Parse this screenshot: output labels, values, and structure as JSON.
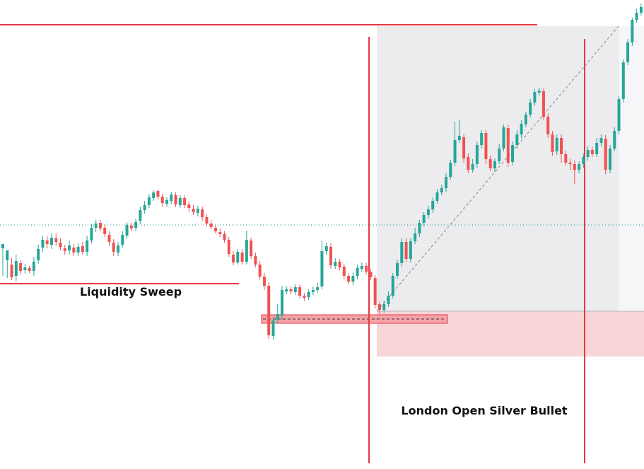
{
  "chart_data": {
    "type": "candlestick",
    "colors": {
      "up": "#26a69a",
      "down": "#ef5350",
      "level_line": "#e53946",
      "dotted_line": "#1a9c7c",
      "target_zone": "#ecebee",
      "stop_zone": "#f8d6d8",
      "fvg": "#f5a3a8"
    },
    "annotations": {
      "liquidity_sweep": "Liquidity Sweep",
      "silver_bullet": "London Open Silver Bullet"
    },
    "candles": [
      [
        351,
        345,
        365,
        390
      ],
      [
        368,
        354,
        375,
        393
      ],
      [
        374,
        392,
        365,
        396
      ],
      [
        390,
        369,
        398,
        360
      ],
      [
        372,
        383,
        368,
        388
      ],
      [
        382,
        378,
        387,
        373
      ],
      [
        379,
        383,
        376,
        386
      ],
      [
        383,
        370,
        390,
        363
      ],
      [
        368,
        352,
        373,
        346
      ],
      [
        350,
        339,
        357,
        333
      ],
      [
        340,
        345,
        334,
        351
      ],
      [
        346,
        336,
        352,
        330
      ],
      [
        337,
        342,
        330,
        348
      ],
      [
        343,
        349,
        337,
        354
      ],
      [
        351,
        355,
        346,
        360
      ],
      [
        354,
        347,
        360,
        340
      ],
      [
        350,
        357,
        345,
        362
      ],
      [
        357,
        349,
        362,
        344
      ],
      [
        348,
        356,
        342,
        360
      ],
      [
        356,
        340,
        362,
        333
      ],
      [
        340,
        322,
        344,
        317
      ],
      [
        322,
        316,
        328,
        311
      ],
      [
        315,
        323,
        311,
        327
      ],
      [
        322,
        331,
        317,
        335
      ],
      [
        332,
        342,
        327,
        348
      ],
      [
        343,
        356,
        338,
        362
      ],
      [
        357,
        347,
        362,
        342
      ],
      [
        346,
        332,
        350,
        327
      ],
      [
        333,
        318,
        338,
        314
      ],
      [
        319,
        323,
        315,
        327
      ],
      [
        322,
        314,
        327,
        309
      ],
      [
        312,
        297,
        317,
        292
      ],
      [
        297,
        290,
        302,
        284
      ],
      [
        290,
        279,
        294,
        274
      ],
      [
        280,
        272,
        284,
        269
      ],
      [
        270,
        278,
        268,
        282
      ],
      [
        278,
        287,
        274,
        292
      ],
      [
        288,
        283,
        292,
        279
      ],
      [
        284,
        275,
        289,
        271
      ],
      [
        276,
        289,
        272,
        293
      ],
      [
        290,
        280,
        294,
        276
      ],
      [
        280,
        290,
        276,
        294
      ],
      [
        289,
        294,
        285,
        300
      ],
      [
        295,
        300,
        290,
        304
      ],
      [
        301,
        295,
        306,
        291
      ],
      [
        296,
        307,
        292,
        312
      ],
      [
        307,
        316,
        303,
        320
      ],
      [
        316,
        321,
        311,
        324
      ],
      [
        322,
        327,
        318,
        330
      ],
      [
        328,
        331,
        323,
        335
      ],
      [
        331,
        339,
        327,
        343
      ],
      [
        339,
        359,
        335,
        363
      ],
      [
        360,
        371,
        355,
        375
      ],
      [
        371,
        356,
        374,
        352
      ],
      [
        357,
        370,
        352,
        374
      ],
      [
        370,
        339,
        374,
        326
      ],
      [
        340,
        362,
        336,
        366
      ],
      [
        362,
        374,
        357,
        378
      ],
      [
        374,
        391,
        369,
        395
      ],
      [
        391,
        404,
        386,
        410
      ],
      [
        404,
        474,
        399,
        479
      ],
      [
        475,
        453,
        480,
        448
      ],
      [
        452,
        444,
        457,
        430
      ],
      [
        446,
        410,
        452,
        404
      ],
      [
        412,
        409,
        416,
        405
      ],
      [
        409,
        412,
        405,
        416
      ],
      [
        413,
        406,
        417,
        402
      ],
      [
        406,
        418,
        402,
        422
      ],
      [
        418,
        421,
        414,
        425
      ],
      [
        420,
        413,
        424,
        409
      ],
      [
        413,
        410,
        417,
        405
      ],
      [
        410,
        406,
        414,
        400
      ],
      [
        405,
        355,
        409,
        340
      ],
      [
        355,
        348,
        360,
        343
      ],
      [
        349,
        375,
        344,
        380
      ],
      [
        376,
        370,
        380,
        365
      ],
      [
        370,
        378,
        366,
        382
      ],
      [
        377,
        390,
        373,
        395
      ],
      [
        390,
        398,
        386,
        402
      ],
      [
        398,
        390,
        403,
        385
      ],
      [
        390,
        379,
        395,
        374
      ],
      [
        380,
        376,
        385,
        371
      ],
      [
        376,
        384,
        372,
        388
      ],
      [
        384,
        392,
        380,
        396
      ],
      [
        393,
        431,
        389,
        436
      ],
      [
        430,
        438,
        426,
        444
      ],
      [
        438,
        430,
        442,
        425
      ],
      [
        430,
        418,
        434,
        412
      ],
      [
        418,
        390,
        422,
        386
      ],
      [
        390,
        372,
        394,
        367
      ],
      [
        372,
        342,
        377,
        337
      ],
      [
        342,
        366,
        337,
        370
      ],
      [
        366,
        341,
        371,
        337
      ],
      [
        341,
        330,
        345,
        322
      ],
      [
        330,
        315,
        335,
        311
      ],
      [
        315,
        304,
        320,
        300
      ],
      [
        304,
        296,
        309,
        291
      ],
      [
        296,
        284,
        301,
        279
      ],
      [
        284,
        272,
        288,
        267
      ],
      [
        272,
        266,
        276,
        261
      ],
      [
        266,
        250,
        271,
        245
      ],
      [
        250,
        230,
        254,
        226
      ],
      [
        230,
        198,
        235,
        172
      ],
      [
        198,
        192,
        202,
        170
      ],
      [
        194,
        224,
        190,
        230
      ],
      [
        222,
        240,
        217,
        245
      ],
      [
        240,
        232,
        244,
        225
      ],
      [
        232,
        205,
        237,
        200
      ],
      [
        205,
        188,
        210,
        184
      ],
      [
        188,
        225,
        184,
        232
      ],
      [
        225,
        238,
        220,
        242
      ],
      [
        238,
        228,
        243,
        224
      ],
      [
        228,
        210,
        232,
        204
      ],
      [
        210,
        180,
        214,
        176
      ],
      [
        181,
        230,
        176,
        236
      ],
      [
        229,
        205,
        234,
        200
      ],
      [
        205,
        190,
        210,
        184
      ],
      [
        190,
        175,
        195,
        170
      ],
      [
        176,
        162,
        180,
        158
      ],
      [
        162,
        145,
        166,
        140
      ],
      [
        145,
        130,
        150,
        126
      ],
      [
        131,
        128,
        135,
        124
      ],
      [
        129,
        165,
        125,
        170
      ],
      [
        165,
        190,
        160,
        195
      ],
      [
        190,
        215,
        185,
        220
      ],
      [
        214,
        195,
        219,
        190
      ],
      [
        195,
        218,
        190,
        230
      ],
      [
        218,
        230,
        213,
        234
      ],
      [
        230,
        232,
        225,
        240
      ],
      [
        232,
        240,
        227,
        260
      ],
      [
        240,
        232,
        245,
        228
      ],
      [
        232,
        222,
        237,
        217
      ],
      [
        222,
        212,
        227,
        207
      ],
      [
        212,
        218,
        207,
        222
      ],
      [
        218,
        202,
        222,
        195
      ],
      [
        202,
        195,
        207,
        190
      ],
      [
        196,
        240,
        191,
        246
      ],
      [
        240,
        210,
        245,
        205
      ],
      [
        210,
        185,
        214,
        180
      ],
      [
        185,
        140,
        190,
        136
      ],
      [
        140,
        88,
        145,
        84
      ],
      [
        88,
        60,
        92,
        55
      ],
      [
        60,
        28,
        65,
        25
      ],
      [
        28,
        18,
        32,
        12
      ],
      [
        18,
        10,
        22,
        5
      ]
    ]
  }
}
